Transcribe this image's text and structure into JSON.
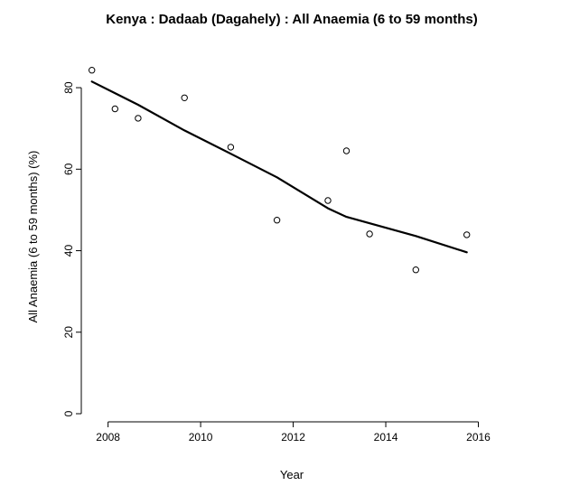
{
  "chart_data": {
    "type": "scatter",
    "title": "Kenya : Dadaab (Dagahely) : All Anaemia (6 to 59 months)",
    "xlabel": "Year",
    "ylabel": "All Anaemia (6 to 59 months) (%)",
    "xlim": [
      2007.5,
      2016.4
    ],
    "ylim": [
      0,
      86
    ],
    "x_ticks": [
      2008,
      2010,
      2012,
      2014,
      2016
    ],
    "y_ticks": [
      0,
      20,
      40,
      60,
      80
    ],
    "x_tick_labels": [
      "2008",
      "2010",
      "2012",
      "2014",
      "2016"
    ],
    "y_tick_labels": [
      "0",
      "20",
      "40",
      "60",
      "80"
    ],
    "grid": false,
    "series": [
      {
        "kind": "points",
        "marker": "open-circle",
        "color": "#000000",
        "x": [
          2007.65,
          2008.15,
          2008.65,
          2009.65,
          2010.65,
          2011.65,
          2012.75,
          2013.15,
          2013.65,
          2014.65,
          2015.75
        ],
        "y": [
          84.3,
          74.8,
          72.5,
          77.5,
          65.4,
          47.5,
          52.3,
          64.5,
          44.1,
          35.3,
          43.9
        ]
      },
      {
        "kind": "line",
        "color": "#000000",
        "x": [
          2007.65,
          2008.65,
          2009.65,
          2010.65,
          2011.65,
          2012.75,
          2013.15,
          2014.65,
          2015.75
        ],
        "y": [
          81.5,
          75.8,
          69.5,
          63.8,
          58.0,
          50.4,
          48.3,
          43.6,
          39.6
        ]
      }
    ]
  }
}
